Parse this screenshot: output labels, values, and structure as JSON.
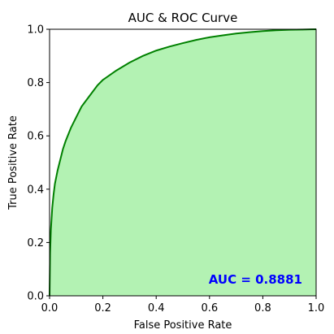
{
  "chart_data": {
    "type": "area",
    "title": "AUC & ROC Curve",
    "xlabel": "False Positive Rate",
    "ylabel": "True Positive Rate",
    "xlim": [
      0,
      1
    ],
    "ylim": [
      0,
      1
    ],
    "xticks": [
      0.0,
      0.2,
      0.4,
      0.6,
      0.8,
      1.0
    ],
    "yticks": [
      0.0,
      0.2,
      0.4,
      0.6,
      0.8,
      1.0
    ],
    "xtick_labels": [
      "0.0",
      "0.2",
      "0.4",
      "0.6",
      "0.8",
      "1.0"
    ],
    "ytick_labels": [
      "0.0",
      "0.2",
      "0.4",
      "0.6",
      "0.8",
      "1.0"
    ],
    "grid": false,
    "legend": "none",
    "annotation": "AUC = 0.8881",
    "annotation_position": "bottom-right",
    "line_color": "#008000",
    "fill_color": "#b3f2b3",
    "annotation_color": "#0000ff",
    "series": [
      {
        "x": [
          0.0,
          0.002,
          0.005,
          0.01,
          0.015,
          0.02,
          0.03,
          0.04,
          0.05,
          0.06,
          0.08,
          0.1,
          0.12,
          0.15,
          0.18,
          0.2,
          0.25,
          0.3,
          0.35,
          0.4,
          0.45,
          0.5,
          0.55,
          0.6,
          0.65,
          0.7,
          0.75,
          0.8,
          0.85,
          0.9,
          0.95,
          1.0
        ],
        "y": [
          0.0,
          0.16,
          0.25,
          0.33,
          0.38,
          0.42,
          0.47,
          0.51,
          0.55,
          0.58,
          0.63,
          0.67,
          0.71,
          0.75,
          0.79,
          0.81,
          0.845,
          0.875,
          0.9,
          0.92,
          0.935,
          0.948,
          0.96,
          0.97,
          0.977,
          0.984,
          0.989,
          0.993,
          0.996,
          0.998,
          0.999,
          1.0
        ]
      }
    ]
  }
}
